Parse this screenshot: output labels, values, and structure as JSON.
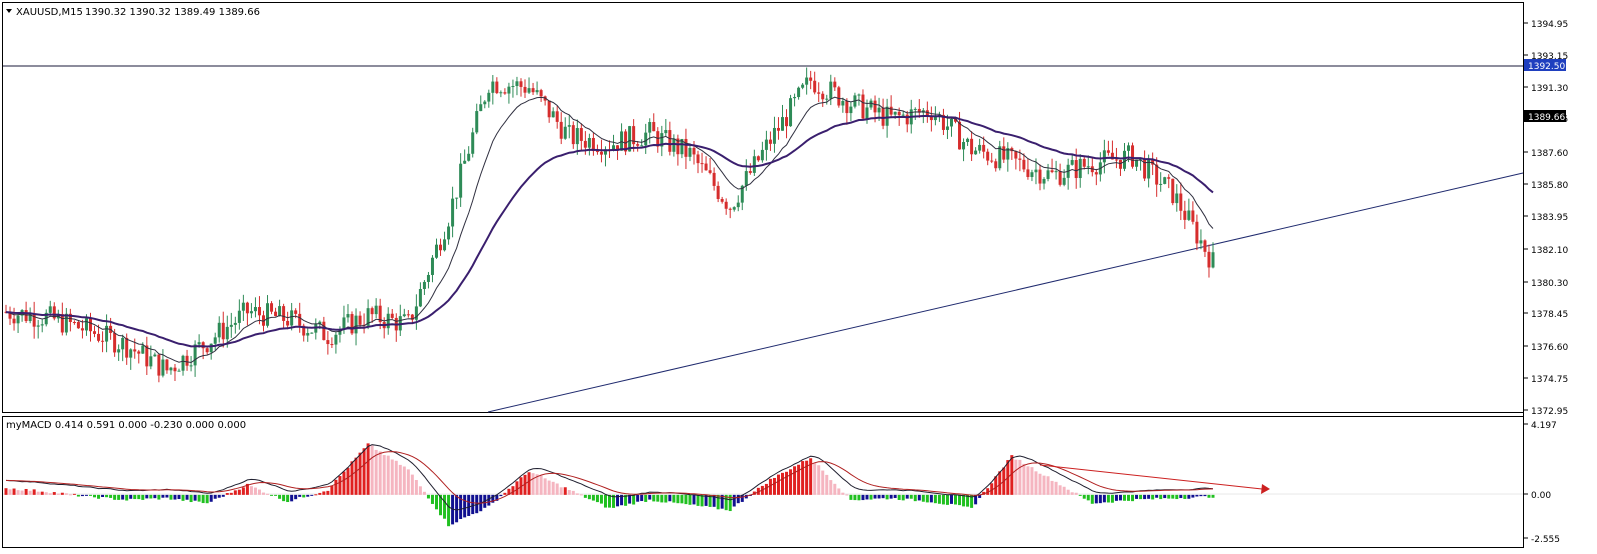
{
  "main_panel": {
    "title": "XAUUSD,M15",
    "ohlc": "1390.32 1390.32 1389.49 1389.66",
    "price_ticks": [
      "1394.95",
      "1393.15",
      "1391.30",
      "1389.45",
      "1387.60",
      "1385.80",
      "1383.95",
      "1382.10",
      "1380.30",
      "1378.45",
      "1376.60",
      "1374.75",
      "1372.95"
    ],
    "horizontal_line_label": "1392.50",
    "current_price_label": "1389.66"
  },
  "macd_panel": {
    "title": "myMACD 0.414 0.591 0.000 -0.230 0.000 0.000",
    "ticks": [
      "4.197",
      "0.00",
      "-2.555"
    ]
  },
  "colors": {
    "bull_candle": "#2e8b57",
    "bear_candle": "#d62d2d",
    "ma_fast": "#303040",
    "ma_slow": "#3a1f6e",
    "trendline": "#1f2a6e",
    "hline": "#1a1a3a",
    "label_bg_hline": "#1f3fbf",
    "label_bg_price": "#000000",
    "hist_pos_up": "#e02020",
    "hist_pos_down": "#f5b5c0",
    "hist_neg_down": "#20c020",
    "hist_neg_up": "#101090",
    "macd_line": "#202030",
    "signal_line": "#b02020",
    "divergence_line": "#cc2020"
  },
  "chart_data": [
    {
      "type": "line",
      "series": [
        {
          "name": "",
          "x": [
            0,
            10,
            20,
            30,
            40,
            50,
            60,
            70,
            80,
            90,
            100,
            110,
            120,
            130,
            140,
            150,
            160,
            170,
            180,
            190,
            200,
            210,
            220,
            230,
            240,
            250,
            260,
            270,
            280,
            290,
            300
          ],
          "values": [
            1378.5,
            1378.2,
            1377.5,
            1376.6,
            1375.2,
            1376.8,
            1378.5,
            1378.1,
            1377.2,
            1378.3,
            1377.8,
            1383.9,
            1391.5,
            1391.2,
            1388.4,
            1388.0,
            1388.6,
            1387.4,
            1384.5,
            1388.2,
            1391.6,
            1390.3,
            1389.4,
            1389.9,
            1387.7,
            1387.0,
            1386.2,
            1386.9,
            1387.3,
            1385.2,
            1381.3
          ]
        }
      ],
      "ylim": [
        1372.95,
        1395.9
      ]
    },
    {
      "type": "bar",
      "series": [
        {
          "name": "",
          "values": [
            0.4,
            0.2,
            -0.1,
            -0.3,
            -0.2,
            -0.5,
            0.6,
            -0.4,
            0.3,
            3.0,
            1.5,
            -1.8,
            -0.7,
            1.4,
            0.3,
            -0.8,
            -0.3,
            -0.6,
            -0.9,
            0.9,
            2.2,
            -0.3,
            -0.2,
            -0.4,
            -0.8,
            2.3,
            0.9,
            -0.5,
            -0.3,
            -0.2,
            -0.1
          ]
        }
      ],
      "ylim": [
        -2.555,
        4.197
      ]
    }
  ]
}
